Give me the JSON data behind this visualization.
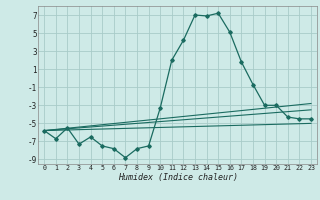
{
  "title": "",
  "xlabel": "Humidex (Indice chaleur)",
  "bg_color": "#ceeae7",
  "grid_color": "#a8ccc9",
  "line_color": "#1a6b60",
  "xlim": [
    -0.5,
    23.5
  ],
  "ylim": [
    -9.5,
    8.0
  ],
  "yticks": [
    -9,
    -7,
    -5,
    -3,
    -1,
    1,
    3,
    5,
    7
  ],
  "xticks": [
    0,
    1,
    2,
    3,
    4,
    5,
    6,
    7,
    8,
    9,
    10,
    11,
    12,
    13,
    14,
    15,
    16,
    17,
    18,
    19,
    20,
    21,
    22,
    23
  ],
  "main_line_x": [
    0,
    1,
    2,
    3,
    4,
    5,
    6,
    7,
    8,
    9,
    10,
    11,
    12,
    13,
    14,
    15,
    16,
    17,
    18,
    19,
    20,
    21,
    22,
    23
  ],
  "main_line_y": [
    -5.8,
    -6.7,
    -5.5,
    -7.3,
    -6.5,
    -7.5,
    -7.8,
    -8.8,
    -7.8,
    -7.5,
    -3.3,
    2.0,
    4.2,
    7.0,
    6.9,
    7.2,
    5.1,
    1.8,
    -0.7,
    -3.0,
    -3.0,
    -4.3,
    -4.5,
    -4.5
  ],
  "line2_x": [
    0,
    23
  ],
  "line2_y": [
    -5.8,
    -2.8
  ],
  "line3_x": [
    0,
    23
  ],
  "line3_y": [
    -5.8,
    -3.5
  ],
  "line4_x": [
    0,
    23
  ],
  "line4_y": [
    -5.8,
    -5.0
  ]
}
